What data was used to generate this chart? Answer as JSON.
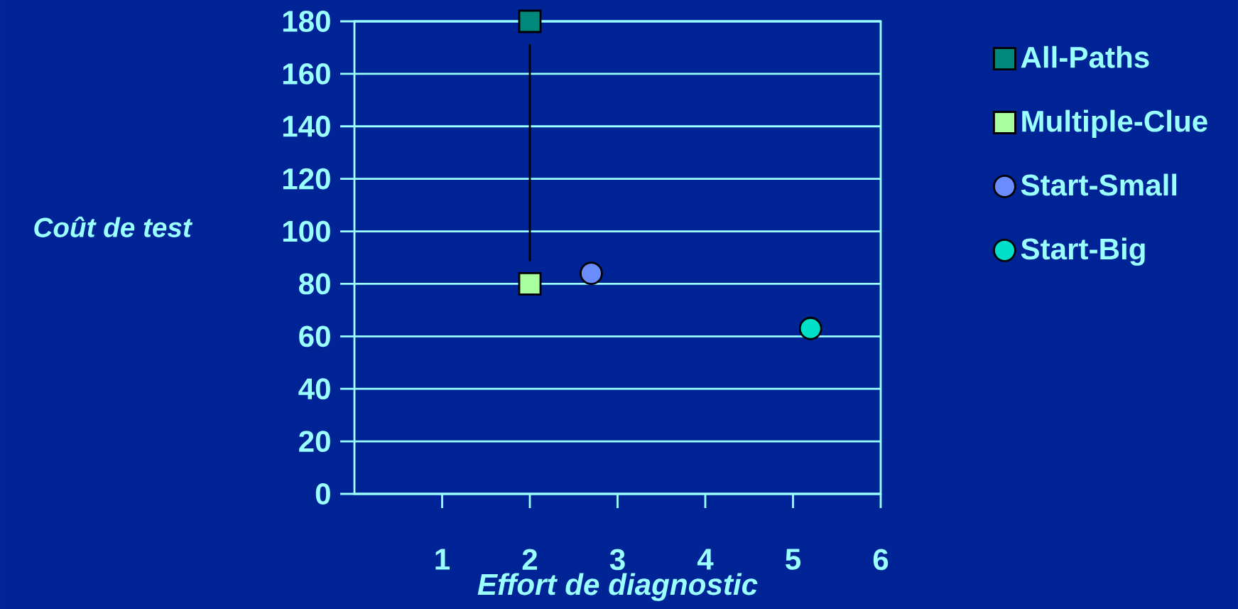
{
  "chart_data": {
    "type": "scatter",
    "xlabel": "Effort de diagnostic",
    "ylabel": "Coût  de test",
    "xlim": [
      0,
      6
    ],
    "ylim": [
      0,
      180
    ],
    "xticks": [
      1,
      2,
      3,
      4,
      5,
      6
    ],
    "yticks": [
      0,
      20,
      40,
      60,
      80,
      100,
      120,
      140,
      160,
      180
    ],
    "grid": "y",
    "legend": "right",
    "series": [
      {
        "name": "All-Paths",
        "color": "#00897b",
        "marker": "square",
        "x": [
          2
        ],
        "values": [
          180
        ]
      },
      {
        "name": "Multiple-Clue",
        "color": "#a8ffa0",
        "marker": "square",
        "x": [
          2
        ],
        "values": [
          80
        ]
      },
      {
        "name": "Start-Small",
        "color": "#6a8cff",
        "marker": "circle",
        "x": [
          2.7
        ],
        "values": [
          84
        ]
      },
      {
        "name": "Start-Big",
        "color": "#00e0c8",
        "marker": "circle",
        "x": [
          5.2
        ],
        "values": [
          63
        ]
      }
    ]
  }
}
